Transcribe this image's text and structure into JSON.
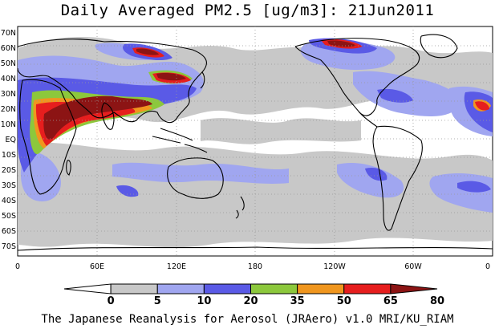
{
  "title": "Daily Averaged PM2.5 [ug/m3]: 21Jun2011",
  "footer": "The Japanese Reanalysis for Aerosol (JRAero) v1.0 MRI/KU_RIAM",
  "map": {
    "lat_labels": [
      "70N",
      "60N",
      "50N",
      "40N",
      "30N",
      "20N",
      "10N",
      "EQ",
      "10S",
      "20S",
      "30S",
      "40S",
      "50S",
      "60S",
      "70S"
    ],
    "lon_labels": [
      "0",
      "60E",
      "120E",
      "180",
      "120W",
      "60W",
      "0"
    ]
  },
  "colorbar": {
    "ticks": [
      "0",
      "5",
      "10",
      "20",
      "35",
      "50",
      "65",
      "80"
    ],
    "colors": [
      "#ffffff",
      "#c8c8c8",
      "#a0a6f0",
      "#5a5ae6",
      "#8cc83c",
      "#f0961e",
      "#e61e1e",
      "#8c1414"
    ]
  },
  "colors": {
    "land_outline": "#000000",
    "grid": "#999999",
    "background": "#ffffff"
  }
}
